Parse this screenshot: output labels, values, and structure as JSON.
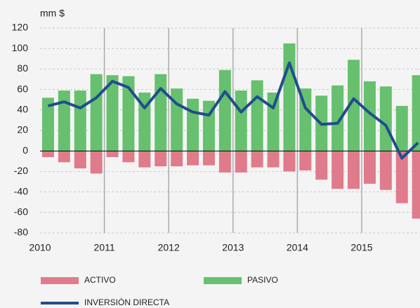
{
  "chart_data": {
    "type": "bar",
    "unit_label": "mm $",
    "categories": [
      "2010",
      null,
      null,
      null,
      "2011",
      null,
      null,
      null,
      "2012",
      null,
      null,
      null,
      "2013",
      null,
      null,
      null,
      "2014",
      null,
      null,
      null,
      "2015",
      null,
      null,
      null
    ],
    "series": [
      {
        "name": "ACTIVO",
        "color": "#e07b8c",
        "values": [
          -6,
          -11,
          -17,
          -22,
          -6,
          -11,
          -16,
          -15,
          -15,
          -14,
          -14,
          -21,
          -21,
          -16,
          -16,
          -20,
          -19,
          -28,
          -37,
          -37,
          -32,
          -38,
          -51,
          -66
        ]
      },
      {
        "name": "PASIVO",
        "color": "#66c06e",
        "values": [
          52,
          59,
          59,
          75,
          74,
          73,
          57,
          75,
          61,
          51,
          49,
          79,
          59,
          69,
          57,
          105,
          61,
          54,
          64,
          89,
          68,
          63,
          44,
          74
        ]
      },
      {
        "name": "INVERSIÓN DIRECTA",
        "color": "#1f4e8c",
        "type": "line",
        "values": [
          44,
          48,
          42,
          52,
          68,
          62,
          42,
          61,
          46,
          38,
          35,
          58,
          38,
          53,
          42,
          86,
          42,
          26,
          27,
          51,
          37,
          25,
          -7,
          8
        ]
      }
    ],
    "ylim": [
      -80,
      120
    ],
    "yticks": [
      -80,
      -60,
      -40,
      -20,
      0,
      20,
      40,
      60,
      80,
      100,
      120
    ],
    "grid": true
  }
}
